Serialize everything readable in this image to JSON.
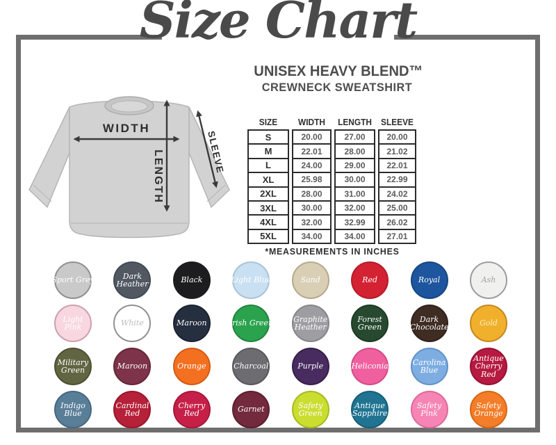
{
  "header": {
    "title": "Size Chart",
    "product_line_1": "UNISEX HEAVY BLEND™",
    "product_line_2": "CREWNECK SWEATSHIRT"
  },
  "diagram": {
    "width_label": "WIDTH",
    "length_label": "LENGTH",
    "sleeve_label": "SLEEVE",
    "garment_color": "#d2d2d2",
    "arrow_color": "#3a3a3a"
  },
  "size_table": {
    "columns": [
      "SIZE",
      "WIDTH",
      "LENGTH",
      "SLEEVE"
    ],
    "rows": [
      [
        "S",
        "20.00",
        "27.00",
        "20.00"
      ],
      [
        "M",
        "22.01",
        "28.00",
        "21.02"
      ],
      [
        "L",
        "24.00",
        "29.00",
        "22.01"
      ],
      [
        "XL",
        "25.98",
        "30.00",
        "22.99"
      ],
      [
        "2XL",
        "28.00",
        "31.00",
        "24.02"
      ],
      [
        "3XL",
        "30.00",
        "32.00",
        "25.00"
      ],
      [
        "4XL",
        "32.00",
        "32.99",
        "26.02"
      ],
      [
        "5XL",
        "34.00",
        "34.00",
        "27.01"
      ]
    ],
    "note": "*MEASUREMENTS IN INCHES"
  },
  "frame_color": "#6e6e6e",
  "colors": [
    {
      "name": "Sport Grey",
      "lines": [
        "Sport Grey"
      ],
      "bg": "#c9c9c9",
      "border": "#8f8f8f",
      "text": "#ffffff"
    },
    {
      "name": "Dark Heather",
      "lines": [
        "Dark",
        "Heather"
      ],
      "bg": "#515862",
      "border": "#424a54",
      "text": "#ffffff"
    },
    {
      "name": "Black",
      "lines": [
        "Black"
      ],
      "bg": "#1d1d1f",
      "border": "#1d1d1f",
      "text": "#ffffff"
    },
    {
      "name": "Light Blue",
      "lines": [
        "Light Blue"
      ],
      "bg": "#c9e0f2",
      "border": "#a9c2d6",
      "text": "#ffffff"
    },
    {
      "name": "Sand",
      "lines": [
        "Sand"
      ],
      "bg": "#d9cfb4",
      "border": "#b5a98c",
      "text": "#ffffff"
    },
    {
      "name": "Red",
      "lines": [
        "Red"
      ],
      "bg": "#d32232",
      "border": "#b51c2a",
      "text": "#ffffff"
    },
    {
      "name": "Royal",
      "lines": [
        "Royal"
      ],
      "bg": "#1d559e",
      "border": "#174783",
      "text": "#ffffff"
    },
    {
      "name": "Ash",
      "lines": [
        "Ash"
      ],
      "bg": "#f0f0ee",
      "border": "#9c9c9c",
      "text": "#a2a2a2"
    },
    {
      "name": "Light Pink",
      "lines": [
        "Light",
        "Pink"
      ],
      "bg": "#f8d7e1",
      "border": "#cc9fae",
      "text": "#ffffff"
    },
    {
      "name": "White",
      "lines": [
        "White"
      ],
      "bg": "#ffffff",
      "border": "#909090",
      "text": "#bdbdbd"
    },
    {
      "name": "Maroon",
      "lines": [
        "Maroon"
      ],
      "bg": "#262f3f",
      "border": "#1c2330",
      "text": "#ffffff"
    },
    {
      "name": "Irish Green",
      "lines": [
        "Irish Green"
      ],
      "bg": "#2ba24d",
      "border": "#218540",
      "text": "#ffffff"
    },
    {
      "name": "Graphite Heather",
      "lines": [
        "Graphite",
        "Heather"
      ],
      "bg": "#9e9ea2",
      "border": "#85858a",
      "text": "#ffffff"
    },
    {
      "name": "Forest Green",
      "lines": [
        "Forest",
        "Green"
      ],
      "bg": "#26492f",
      "border": "#1c3a24",
      "text": "#ffffff"
    },
    {
      "name": "Dark Chocolate",
      "lines": [
        "Dark",
        "Chocolate"
      ],
      "bg": "#3f2c23",
      "border": "#31211a",
      "text": "#ffffff"
    },
    {
      "name": "Gold",
      "lines": [
        "Gold"
      ],
      "bg": "#f0b02c",
      "border": "#c5871f",
      "text": "#fdf0c0"
    },
    {
      "name": "Military Green",
      "lines": [
        "Military",
        "Green"
      ],
      "bg": "#616541",
      "border": "#4d5131",
      "text": "#ffffff"
    },
    {
      "name": "Maroon",
      "lines": [
        "Maroon"
      ],
      "bg": "#7d3349",
      "border": "#652739",
      "text": "#ffffff"
    },
    {
      "name": "Orange",
      "lines": [
        "Orange"
      ],
      "bg": "#f37021",
      "border": "#d45a13",
      "text": "#ffffff"
    },
    {
      "name": "Charcoal",
      "lines": [
        "Charcoal"
      ],
      "bg": "#6d6d71",
      "border": "#58585c",
      "text": "#ffffff"
    },
    {
      "name": "Purple",
      "lines": [
        "Purple"
      ],
      "bg": "#482b5f",
      "border": "#371f4b",
      "text": "#ffffff"
    },
    {
      "name": "Heliconia",
      "lines": [
        "Heliconia"
      ],
      "bg": "#f0609f",
      "border": "#d44a87",
      "text": "#ffffff"
    },
    {
      "name": "Carolina Blue",
      "lines": [
        "Carolina",
        "Blue"
      ],
      "bg": "#7eaee1",
      "border": "#6092c7",
      "text": "#ffffff"
    },
    {
      "name": "Antique Cherry Red",
      "lines": [
        "Antique",
        "Cherry",
        "Red"
      ],
      "bg": "#b61a40",
      "border": "#971133",
      "text": "#ffffff"
    },
    {
      "name": "Indigo Blue",
      "lines": [
        "Indigo",
        "Blue"
      ],
      "bg": "#597e98",
      "border": "#47687f",
      "text": "#ffffff"
    },
    {
      "name": "Cardinal Red",
      "lines": [
        "Cardinal",
        "Red"
      ],
      "bg": "#b62039",
      "border": "#99172c",
      "text": "#ffffff"
    },
    {
      "name": "Cherry Red",
      "lines": [
        "Cherry",
        "Red"
      ],
      "bg": "#c62049",
      "border": "#a7173a",
      "text": "#ffffff"
    },
    {
      "name": "Garnet",
      "lines": [
        "Garnet"
      ],
      "bg": "#722a3c",
      "border": "#5b1f2f",
      "text": "#ffffff"
    },
    {
      "name": "Safety Green",
      "lines": [
        "Safety",
        "Green"
      ],
      "bg": "#cadd31",
      "border": "#a7ba1f",
      "text": "#ffffff"
    },
    {
      "name": "Antique Sapphire",
      "lines": [
        "Antique",
        "Sapphire"
      ],
      "bg": "#207492",
      "border": "#175e79",
      "text": "#ffffff"
    },
    {
      "name": "Safety Pink",
      "lines": [
        "Safety",
        "Pink"
      ],
      "bg": "#f685b5",
      "border": "#dc699c",
      "text": "#ffffff"
    },
    {
      "name": "Safety Orange",
      "lines": [
        "Safety",
        "Orange"
      ],
      "bg": "#f37d28",
      "border": "#d66616",
      "text": "#ffffff"
    }
  ]
}
